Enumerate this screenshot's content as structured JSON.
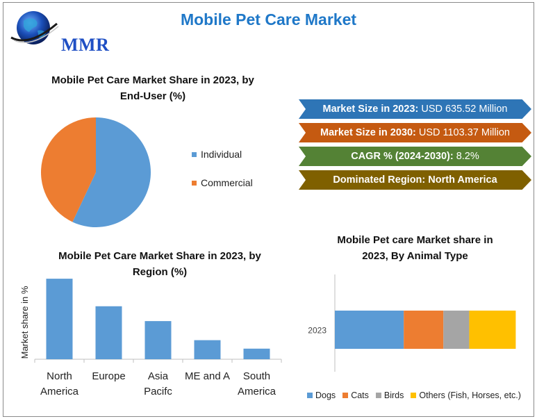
{
  "header": {
    "title": "Mobile Pet Care Market",
    "logo_text": "MMR"
  },
  "banners": [
    {
      "label": "Market Size in 2023:",
      "value": "USD 635.52 Million",
      "color": "#2e75b6"
    },
    {
      "label": "Market Size in 2030:",
      "value": "USD 1103.37 Million",
      "color": "#c55a11"
    },
    {
      "label": "CAGR % (2024-2030):",
      "value": "8.2%",
      "color": "#548235"
    },
    {
      "label": "Dominated Region: North America",
      "value": "",
      "color": "#7f6000"
    }
  ],
  "chart_data": [
    {
      "type": "pie",
      "title": "Mobile Pet Care Market Share in 2023, by End-User (%)",
      "categories": [
        "Individual",
        "Commercial"
      ],
      "values": [
        57,
        43
      ],
      "colors": [
        "#5b9bd5",
        "#ed7d31"
      ],
      "legend": "right"
    },
    {
      "type": "bar",
      "title": "Mobile Pet Care Market Share in 2023, by Region (%)",
      "xlabel": "",
      "ylabel": "Market share in %",
      "categories": [
        "North America",
        "Europe",
        "Asia Pacifc",
        "ME and A",
        "South America"
      ],
      "values": [
        38,
        25,
        18,
        9,
        5
      ],
      "ylim": [
        0,
        40
      ],
      "color": "#5b9bd5"
    },
    {
      "type": "bar",
      "orientation": "horizontal-stacked",
      "title": "Mobile Pet care Market share in 2023, By Animal Type",
      "categories": [
        "2023"
      ],
      "series": [
        {
          "name": "Dogs",
          "values": [
            40
          ],
          "color": "#5b9bd5"
        },
        {
          "name": "Cats",
          "values": [
            23
          ],
          "color": "#ed7d31"
        },
        {
          "name": "Birds",
          "values": [
            15
          ],
          "color": "#a5a5a5"
        },
        {
          "name": "Others (Fish, Horses, etc.)",
          "values": [
            27
          ],
          "color": "#ffc000"
        }
      ],
      "xlim": [
        0,
        100
      ],
      "legend": "bottom"
    }
  ]
}
